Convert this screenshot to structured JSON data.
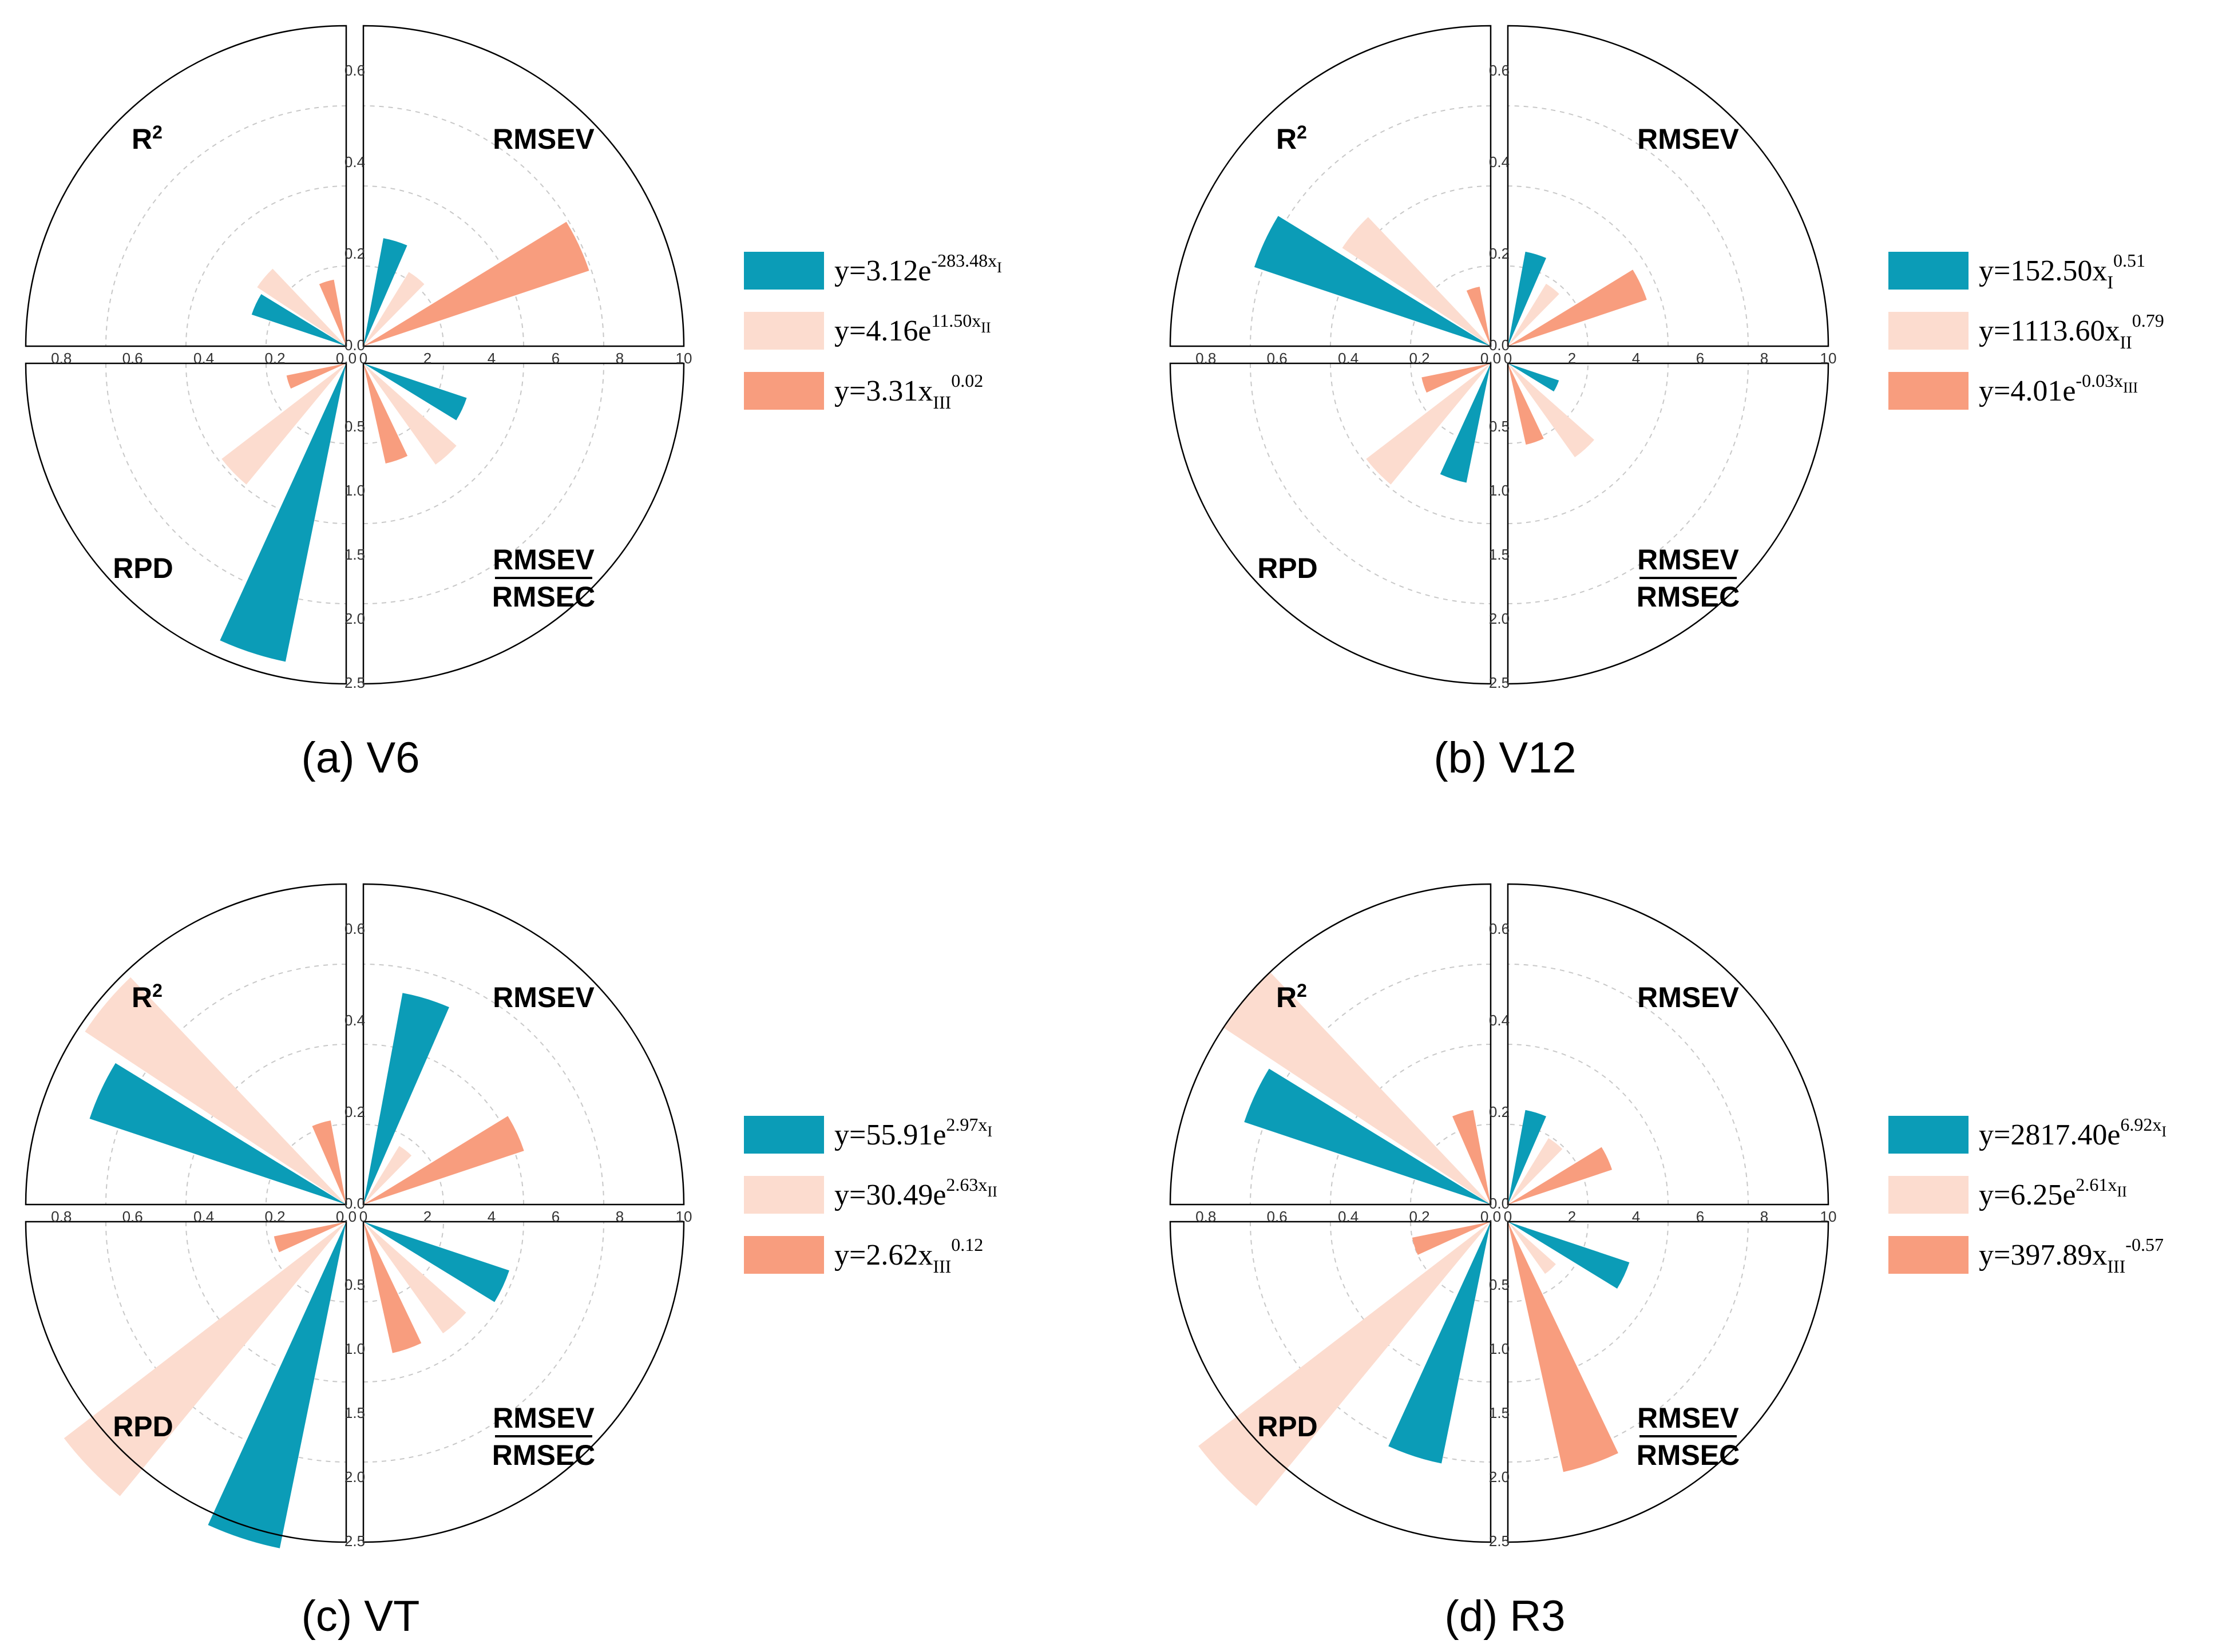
{
  "colors": {
    "series_I": "#0b9cb7",
    "series_II": "#fcdccf",
    "series_III": "#f89d7e",
    "gridline": "#c8c8c8"
  },
  "axis_labels": {
    "r2": "R",
    "r2_sup": "2",
    "rmsev": "RMSEV",
    "rpd": "RPD",
    "ratio_num": "RMSEV",
    "ratio_den": "RMSEC"
  },
  "axis_ticks": {
    "r2": [
      "0.8",
      "0.6",
      "0.4",
      "0.2",
      "0.0"
    ],
    "rmsev": [
      "0.0",
      "0.2",
      "0.4",
      "0.6"
    ],
    "rpd": [
      "0",
      "2",
      "4",
      "6",
      "8",
      "10"
    ],
    "ratio": [
      "0.0",
      "0.5",
      "1.0",
      "1.5",
      "2.0",
      "2.5"
    ]
  },
  "chart_data": [
    {
      "type": "polar-bar",
      "panel": "(a) V6",
      "title": "(a) V6",
      "quadrants": [
        "R2",
        "RMSEV",
        "RPD",
        "RMSEV/RMSEC"
      ],
      "ranges": {
        "R2": [
          0,
          0.9
        ],
        "RMSEV": [
          0,
          0.7
        ],
        "RPD": [
          0,
          10
        ],
        "RMSEV/RMSEC": [
          0,
          2.5
        ]
      },
      "series": [
        {
          "name": "y=3.12e-283.48xI",
          "legend": [
            {
              "t": "y=3.12e"
            },
            {
              "t": "-283.48x",
              "s": "sup"
            },
            {
              "t": "I",
              "s": "supsub"
            }
          ],
          "values": {
            "R2": 0.28,
            "RMSEV": 0.24,
            "RPD": 9.5,
            "RMSEV/RMSEC": 0.85
          }
        },
        {
          "name": "y=4.16e11.50xII",
          "legend": [
            {
              "t": "y=4.16e"
            },
            {
              "t": "11.50x",
              "s": "sup"
            },
            {
              "t": "II",
              "s": "supsub"
            }
          ],
          "values": {
            "R2": 0.3,
            "RMSEV": 0.19,
            "RPD": 4.9,
            "RMSEV/RMSEC": 0.97
          }
        },
        {
          "name": "y=3.31xIII0.02",
          "legend": [
            {
              "t": "y=3.31x"
            },
            {
              "t": "III",
              "s": "sub"
            },
            {
              "t": "0.02",
              "s": "sup"
            }
          ],
          "values": {
            "R2": 0.19,
            "RMSEV": 0.52,
            "RPD": 1.9,
            "RMSEV/RMSEC": 0.8
          }
        }
      ]
    },
    {
      "type": "polar-bar",
      "panel": "(b) V12",
      "title": "(b) V12",
      "quadrants": [
        "R2",
        "RMSEV",
        "RPD",
        "RMSEV/RMSEC"
      ],
      "ranges": {
        "R2": [
          0,
          0.9
        ],
        "RMSEV": [
          0,
          0.7
        ],
        "RPD": [
          0,
          10
        ],
        "RMSEV/RMSEC": [
          0,
          2.5
        ]
      },
      "series": [
        {
          "name": "y=152.50xI0.51",
          "legend": [
            {
              "t": "y=152.50x"
            },
            {
              "t": "I",
              "s": "sub"
            },
            {
              "t": "0.51",
              "s": "sup"
            }
          ],
          "values": {
            "R2": 0.7,
            "RMSEV": 0.21,
            "RPD": 3.8,
            "RMSEV/RMSEC": 0.42
          }
        },
        {
          "name": "y=1113.60xII0.79",
          "legend": [
            {
              "t": "y=1113.60x"
            },
            {
              "t": "II",
              "s": "sub"
            },
            {
              "t": "0.79",
              "s": "sup"
            }
          ],
          "values": {
            "R2": 0.5,
            "RMSEV": 0.16,
            "RPD": 4.9,
            "RMSEV/RMSEC": 0.9
          }
        },
        {
          "name": "y=4.01e-0.03xIII",
          "legend": [
            {
              "t": "y=4.01e"
            },
            {
              "t": "-0.03x",
              "s": "sup"
            },
            {
              "t": "III",
              "s": "supsub"
            }
          ],
          "values": {
            "R2": 0.17,
            "RMSEV": 0.32,
            "RPD": 2.2,
            "RMSEV/RMSEC": 0.65
          }
        }
      ]
    },
    {
      "type": "polar-bar",
      "panel": "(c) VT",
      "title": "(c) VT",
      "quadrants": [
        "R2",
        "RMSEV",
        "RPD",
        "RMSEV/RMSEC"
      ],
      "ranges": {
        "R2": [
          0,
          0.9
        ],
        "RMSEV": [
          0,
          0.7
        ],
        "RPD": [
          0,
          10
        ],
        "RMSEV/RMSEC": [
          0,
          2.5
        ]
      },
      "series": [
        {
          "name": "y=55.91e2.97xI",
          "legend": [
            {
              "t": "y=55.91e"
            },
            {
              "t": "2.97x",
              "s": "sup"
            },
            {
              "t": "I",
              "s": "supsub"
            }
          ],
          "values": {
            "R2": 0.76,
            "RMSEV": 0.47,
            "RPD": 10.4,
            "RMSEV/RMSEC": 1.2
          }
        },
        {
          "name": "y=30.49e2.63xII",
          "legend": [
            {
              "t": "y=30.49e"
            },
            {
              "t": "2.63x",
              "s": "sup"
            },
            {
              "t": "II",
              "s": "supsub"
            }
          ],
          "values": {
            "R2": 0.88,
            "RMSEV": 0.15,
            "RPD": 11.1,
            "RMSEV/RMSEC": 1.07
          }
        },
        {
          "name": "y=2.62xIII0.12",
          "legend": [
            {
              "t": "y=2.62x"
            },
            {
              "t": "III",
              "s": "sub"
            },
            {
              "t": "0.12",
              "s": "sup"
            }
          ],
          "values": {
            "R2": 0.24,
            "RMSEV": 0.37,
            "RPD": 2.3,
            "RMSEV/RMSEC": 1.05
          }
        }
      ]
    },
    {
      "type": "polar-bar",
      "panel": "(d) R3",
      "title": "(d) R3",
      "quadrants": [
        "R2",
        "RMSEV",
        "RPD",
        "RMSEV/RMSEC"
      ],
      "ranges": {
        "R2": [
          0,
          0.9
        ],
        "RMSEV": [
          0,
          0.7
        ],
        "RPD": [
          0,
          10
        ],
        "RMSEV/RMSEC": [
          0,
          2.5
        ]
      },
      "series": [
        {
          "name": "y=2817.40e6.92xI",
          "legend": [
            {
              "t": "y=2817.40e"
            },
            {
              "t": "6.92x",
              "s": "sup"
            },
            {
              "t": "I",
              "s": "supsub"
            }
          ],
          "values": {
            "R2": 0.73,
            "RMSEV": 0.21,
            "RPD": 7.7,
            "RMSEV/RMSEC": 1.0
          }
        },
        {
          "name": "y=6.25e2.61xII",
          "legend": [
            {
              "t": "y=6.25e"
            },
            {
              "t": "2.61x",
              "s": "sup"
            },
            {
              "t": "II",
              "s": "supsub"
            }
          ],
          "values": {
            "R2": 0.9,
            "RMSEV": 0.17,
            "RPD": 11.6,
            "RMSEV/RMSEC": 0.5
          }
        },
        {
          "name": "y=397.89xIII-0.57",
          "legend": [
            {
              "t": "y=397.89x"
            },
            {
              "t": "III",
              "s": "sub"
            },
            {
              "t": "-0.57",
              "s": "sup"
            }
          ],
          "values": {
            "R2": 0.27,
            "RMSEV": 0.24,
            "RPD": 2.5,
            "RMSEV/RMSEC": 2.0
          }
        }
      ]
    }
  ]
}
